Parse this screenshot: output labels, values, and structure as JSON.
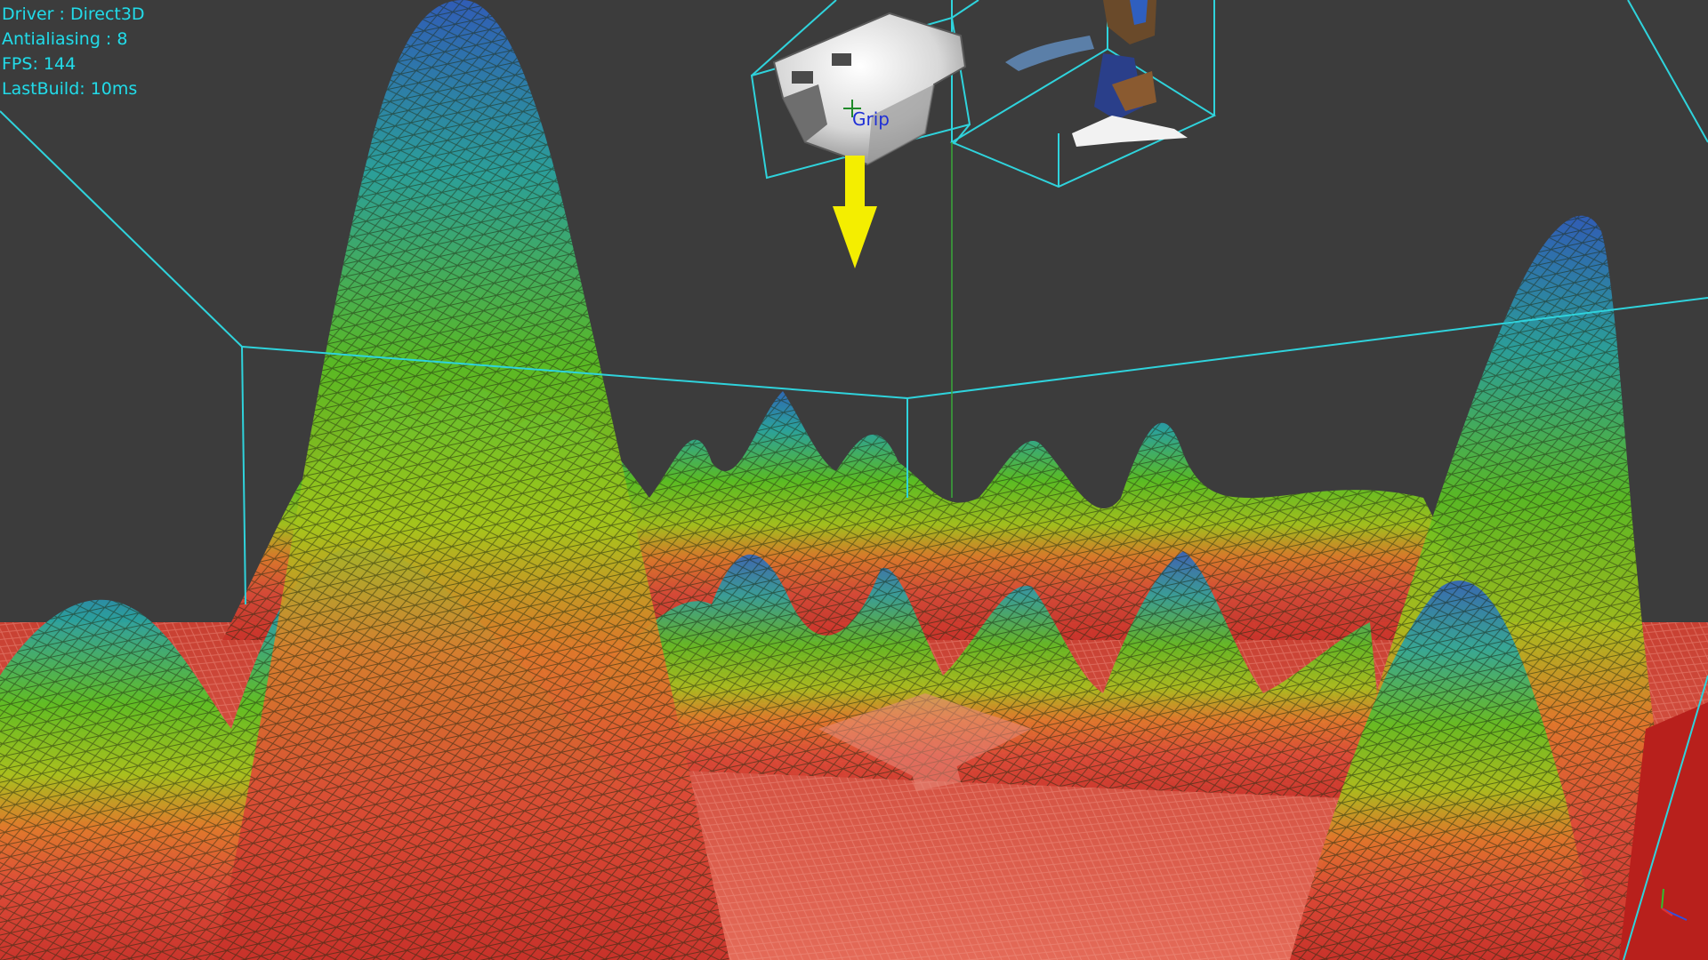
{
  "hud": {
    "driver": "Driver : Direct3D",
    "antialiasing": "Antialiasing : 8",
    "fps": "FPS: 144",
    "last_build": "LastBuild: 10ms"
  },
  "scene": {
    "grip_label": "Grip",
    "colors": {
      "background": "#3c3c3c",
      "bounding_box": "#2fd3dc",
      "hud_text": "#27d9e6",
      "grip_text": "#1f2fd6",
      "arrow": "#f4ee00",
      "surface_low": "#d93b2e",
      "surface_mid": "#78c81e",
      "surface_high": "#2f6fbf"
    },
    "icons": [
      "gripper-model",
      "down-arrow-icon",
      "point-cloud-model",
      "axis-triad-icon",
      "crosshair-icon"
    ]
  }
}
